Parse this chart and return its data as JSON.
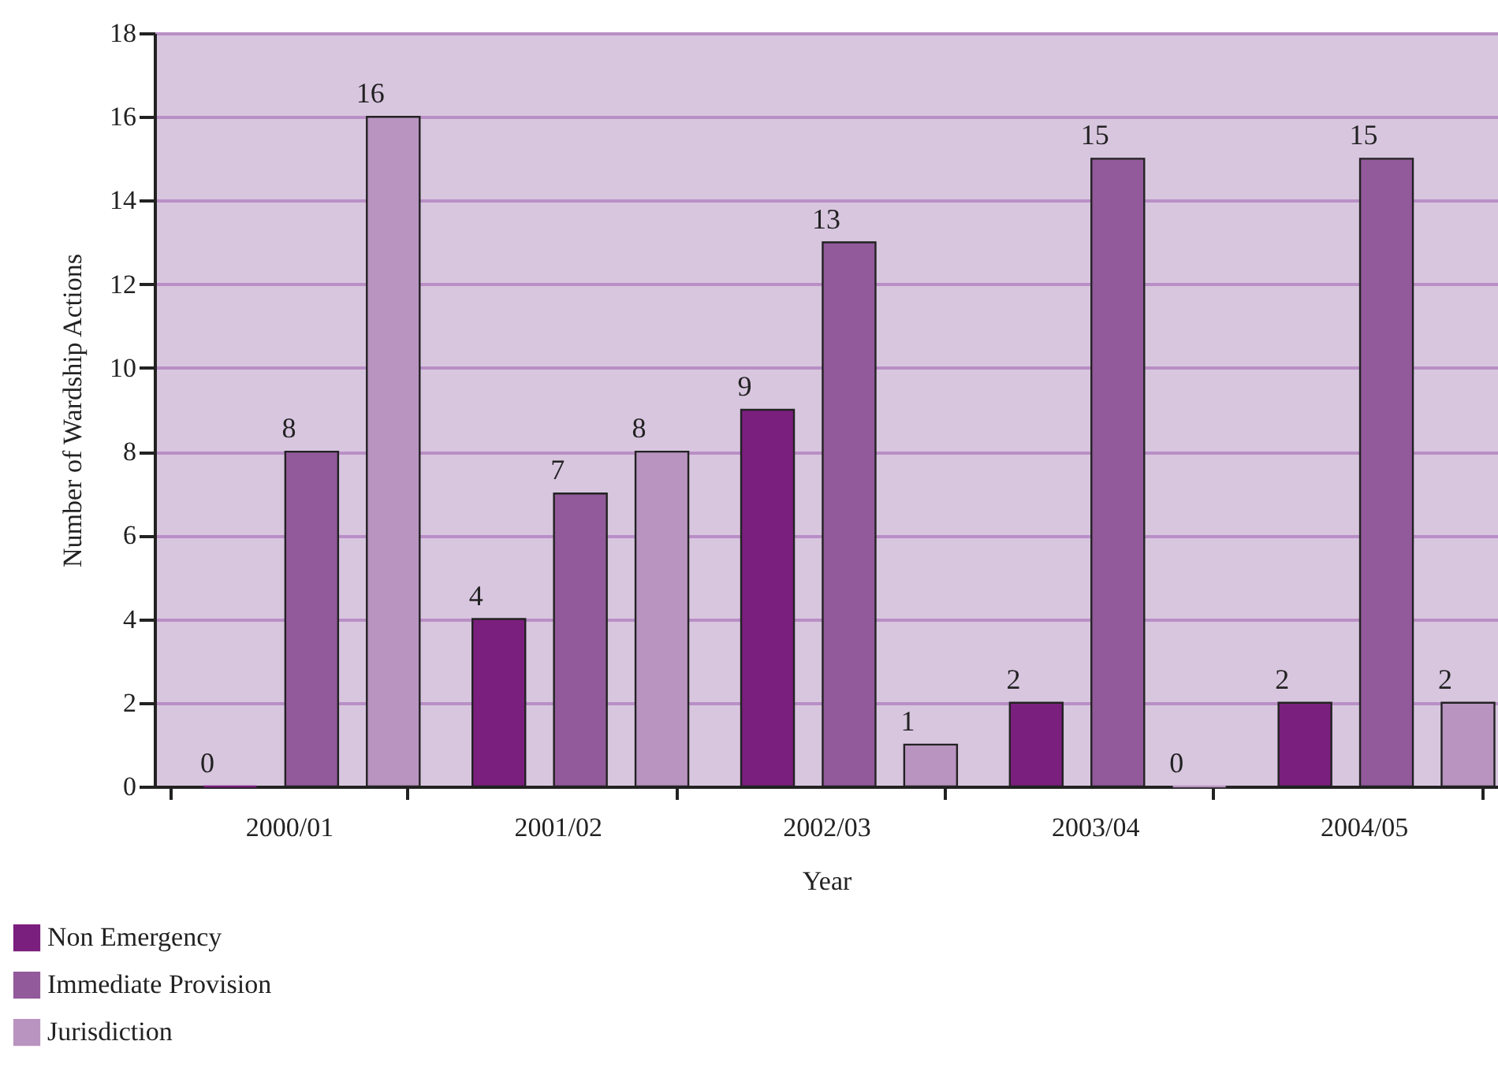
{
  "chart_data": {
    "type": "bar",
    "xlabel": "Year",
    "ylabel": "Number of Wardship Actions",
    "categories": [
      "2000/01",
      "2001/02",
      "2002/03",
      "2003/04",
      "2004/05"
    ],
    "series": [
      {
        "name": "Non Emergency",
        "color": "#7a1f7d",
        "values": [
          0,
          4,
          9,
          2,
          2
        ]
      },
      {
        "name": "Immediate Provision",
        "color": "#925a9a",
        "values": [
          8,
          7,
          13,
          15,
          15
        ]
      },
      {
        "name": "Jurisdiction",
        "color": "#b994c0",
        "values": [
          16,
          8,
          1,
          0,
          2
        ]
      }
    ],
    "ylim": [
      0,
      18
    ],
    "yticks": [
      0,
      2,
      4,
      6,
      8,
      10,
      12,
      14,
      16,
      18
    ],
    "grid": "y",
    "data_labels": true,
    "legend": "bottom left"
  }
}
